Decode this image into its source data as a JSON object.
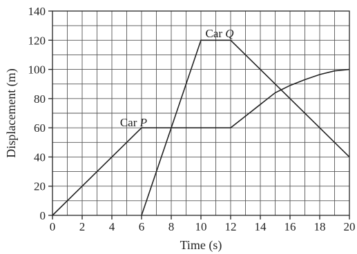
{
  "chart_data": {
    "type": "line",
    "title": "",
    "xlabel": "Time (s)",
    "ylabel": "Displacement (m)",
    "xlim": [
      0,
      20
    ],
    "ylim": [
      0,
      140
    ],
    "xticks": [
      0,
      2,
      4,
      6,
      8,
      10,
      12,
      14,
      16,
      18,
      20
    ],
    "yticks": [
      0,
      20,
      40,
      60,
      80,
      100,
      120,
      140
    ],
    "grid": true,
    "series": [
      {
        "name": "Car P",
        "label_prefix": "Car ",
        "label_var": "P",
        "x": [
          0,
          6,
          12,
          13,
          14,
          15,
          16,
          17,
          18,
          19,
          20
        ],
        "y": [
          0,
          60,
          60,
          68,
          76,
          84,
          89,
          93,
          96.5,
          99,
          100
        ]
      },
      {
        "name": "Car Q",
        "label_prefix": "Car ",
        "label_var": "Q",
        "x": [
          6,
          10,
          12,
          20
        ],
        "y": [
          0,
          120,
          120,
          40
        ]
      }
    ]
  }
}
